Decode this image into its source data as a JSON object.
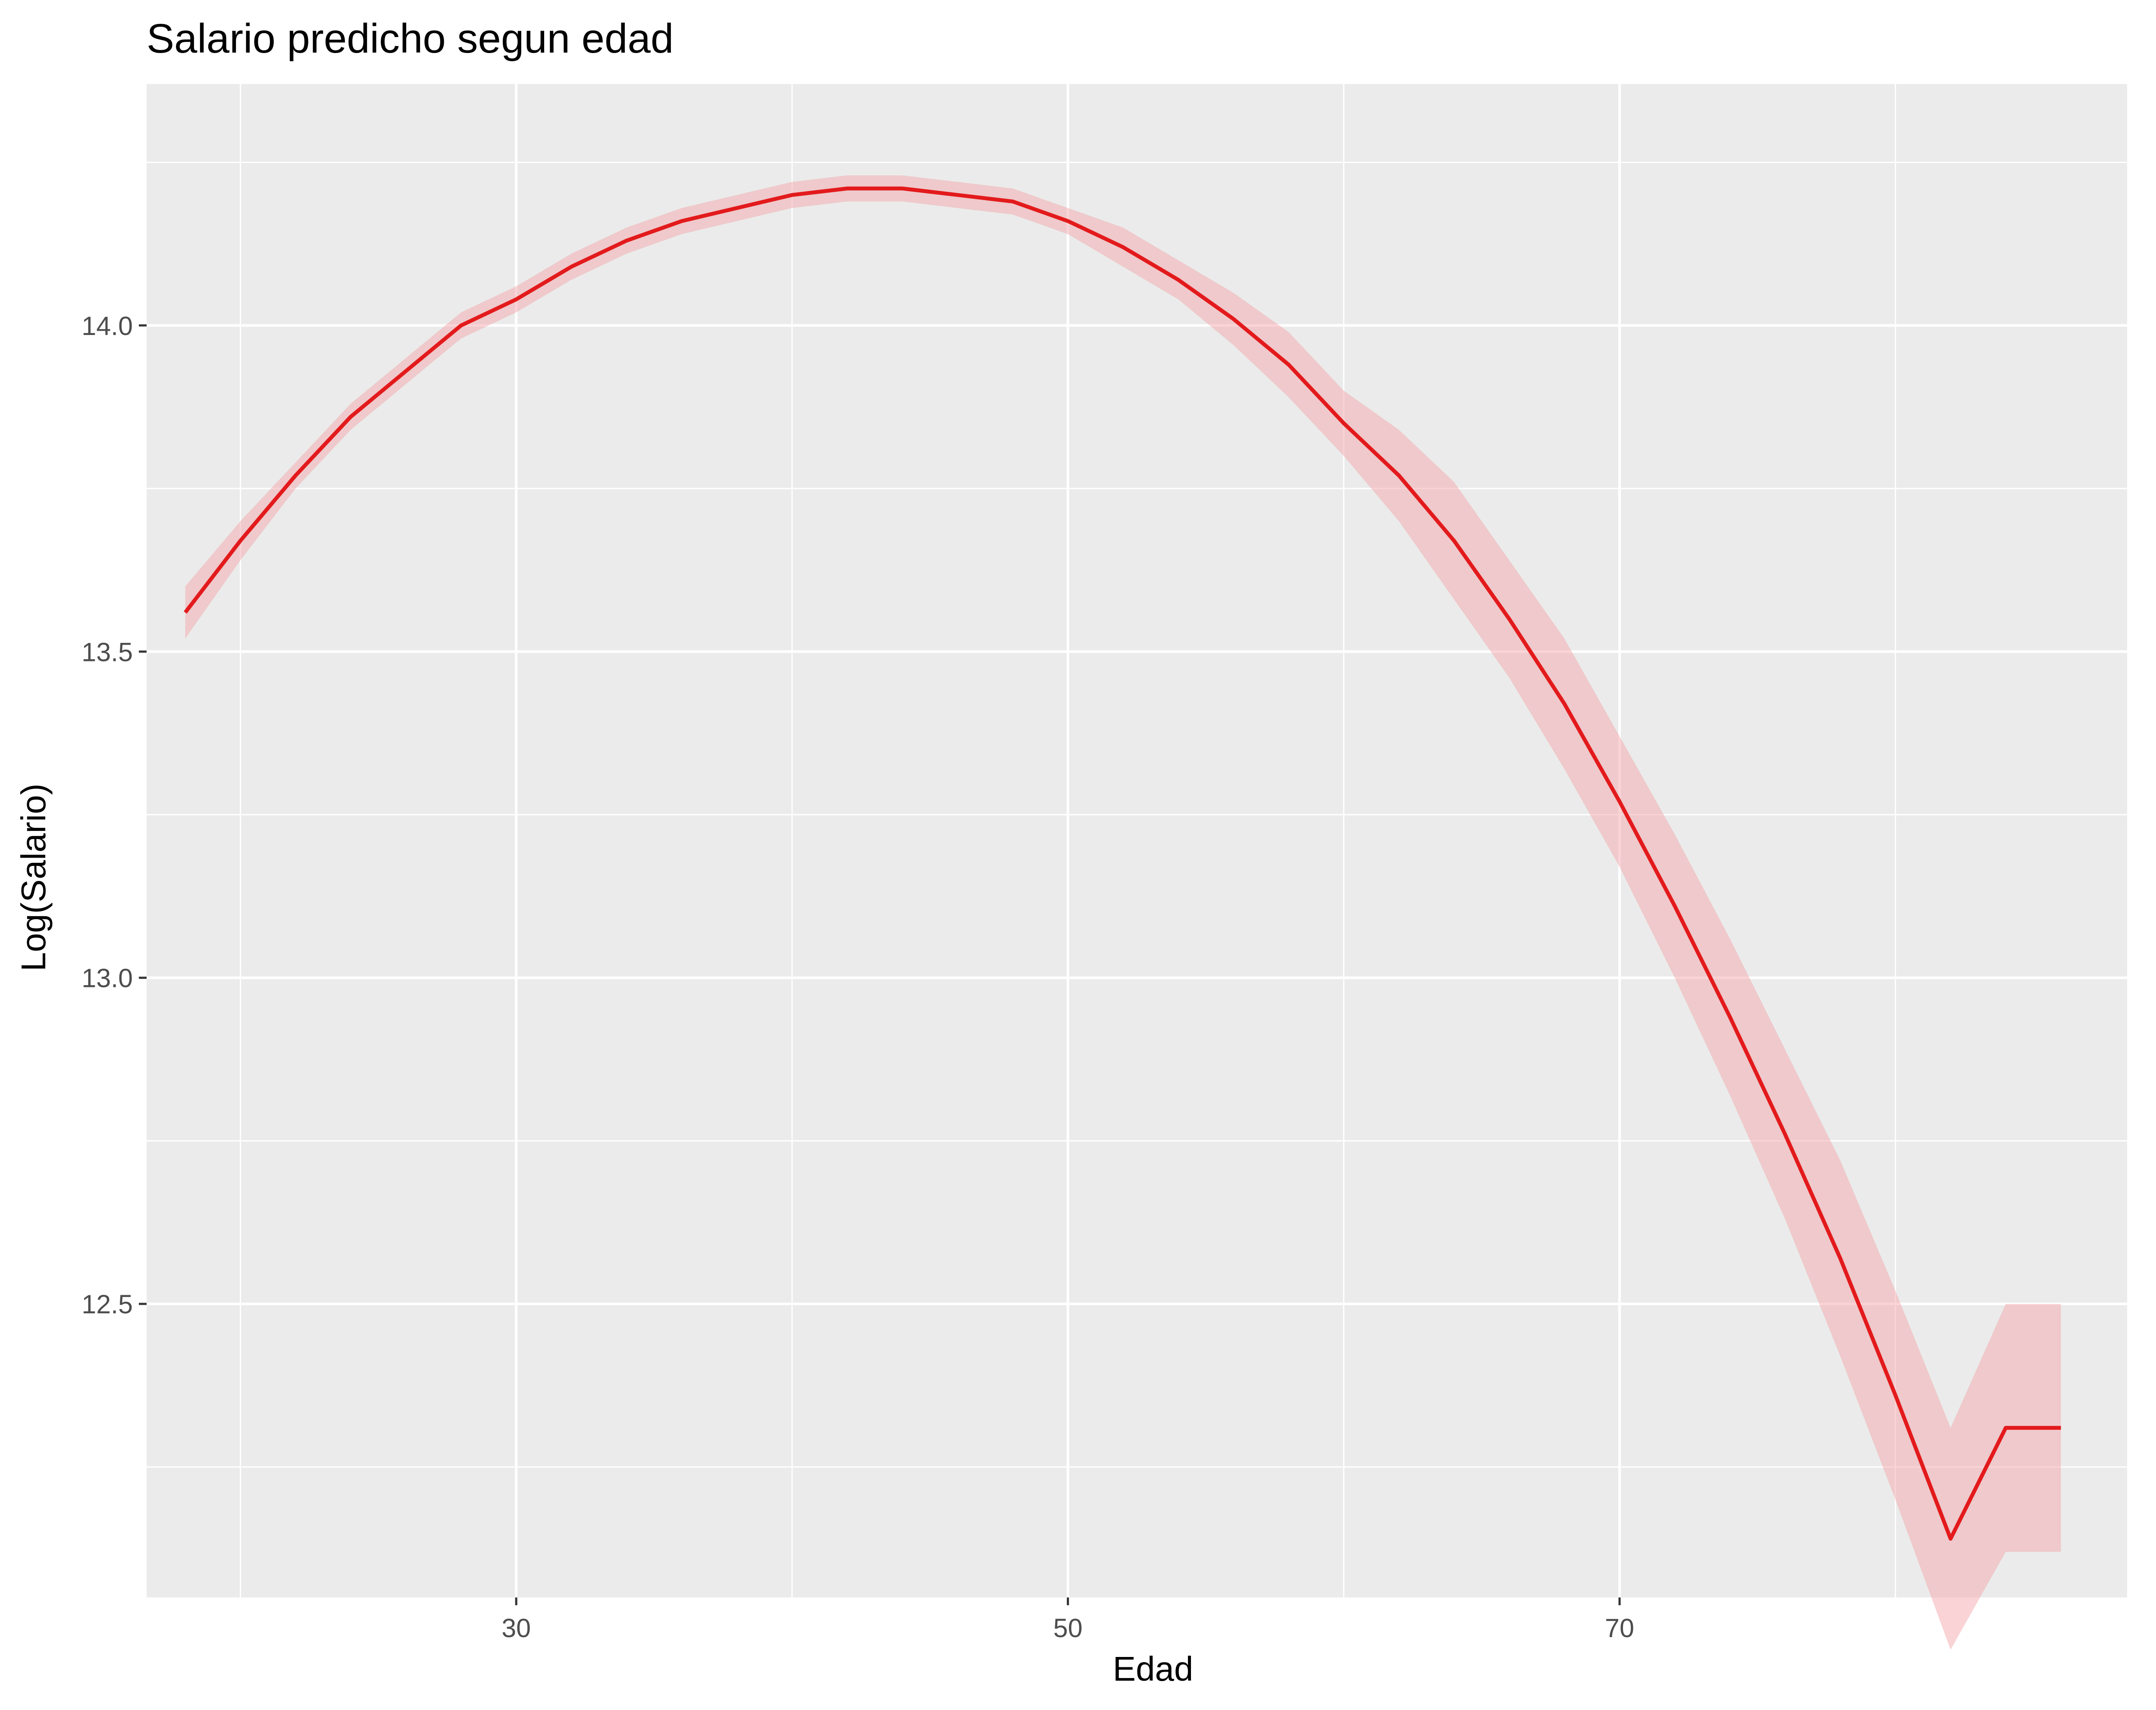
{
  "chart_data": {
    "type": "line",
    "title": "Salario predicho segun edad",
    "xlabel": "Edad",
    "ylabel": "Log(Salario)",
    "xlim": [
      16.6,
      88.4
    ],
    "ylim": [
      12.05,
      14.37
    ],
    "x_major_ticks": [
      30,
      50,
      70
    ],
    "x_minor_ticks": [
      20,
      40,
      60,
      80
    ],
    "y_major_ticks": [
      12.5,
      13.0,
      13.5,
      14.0
    ],
    "y_minor_ticks": [
      12.25,
      12.75,
      13.25,
      13.75,
      14.25
    ],
    "x_tick_labels": [
      "30",
      "50",
      "70"
    ],
    "y_tick_labels": [
      "12.5",
      "13.0",
      "13.5",
      "14.0"
    ],
    "grid": true,
    "legend": "none",
    "colors": {
      "panel": "#ebebeb",
      "grid": "#ffffff",
      "line": "#e31a1c",
      "ribbon": "#f4a7ab",
      "tick": "#333333"
    },
    "series": [
      {
        "x": [
          18,
          20,
          22,
          24,
          26,
          28,
          30,
          32,
          34,
          36,
          38,
          40,
          42,
          44,
          46,
          48,
          50,
          52,
          54,
          56,
          58,
          60,
          62,
          64,
          66,
          68,
          70,
          72,
          74,
          76,
          78,
          80,
          82,
          84,
          86
        ],
        "y": [
          13.56,
          13.67,
          13.77,
          13.86,
          13.93,
          14.0,
          14.04,
          14.09,
          14.13,
          14.16,
          14.18,
          14.2,
          14.21,
          14.21,
          14.2,
          14.19,
          14.16,
          14.12,
          14.07,
          14.01,
          13.94,
          13.85,
          13.77,
          13.67,
          13.55,
          13.42,
          13.27,
          13.11,
          12.94,
          12.76,
          12.57,
          12.36,
          12.14,
          12.31,
          12.31
        ],
        "lower": [
          13.52,
          13.64,
          13.75,
          13.84,
          13.91,
          13.98,
          14.02,
          14.07,
          14.11,
          14.14,
          14.16,
          14.18,
          14.19,
          14.19,
          14.18,
          14.17,
          14.14,
          14.09,
          14.04,
          13.97,
          13.89,
          13.8,
          13.7,
          13.58,
          13.46,
          13.32,
          13.17,
          13.0,
          12.82,
          12.63,
          12.42,
          12.2,
          11.97,
          12.12,
          12.12
        ],
        "upper": [
          13.6,
          13.7,
          13.79,
          13.88,
          13.95,
          14.02,
          14.06,
          14.11,
          14.15,
          14.18,
          14.2,
          14.22,
          14.23,
          14.23,
          14.22,
          14.21,
          14.18,
          14.15,
          14.1,
          14.05,
          13.99,
          13.9,
          13.84,
          13.76,
          13.64,
          13.52,
          13.37,
          13.22,
          13.06,
          12.89,
          12.72,
          12.52,
          12.31,
          12.5,
          12.5
        ]
      }
    ]
  }
}
